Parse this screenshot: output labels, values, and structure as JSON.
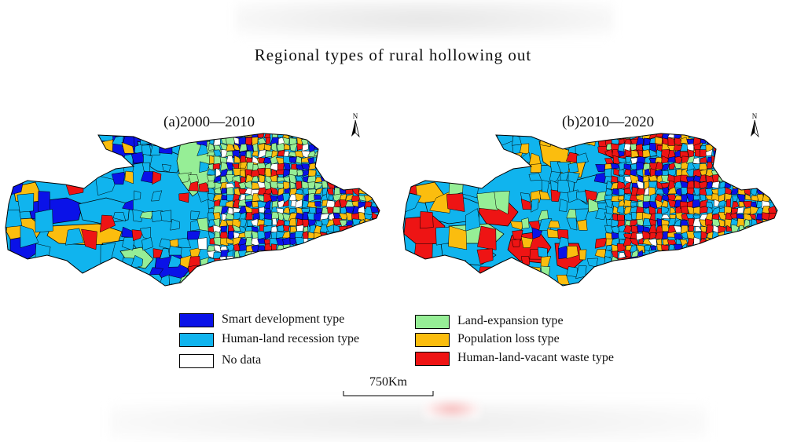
{
  "title": "Regional types of rural hollowing out",
  "panels": [
    {
      "id": "a",
      "title": "(a)2000—2010",
      "north_label": "N"
    },
    {
      "id": "b",
      "title": "(b)2010—2020",
      "north_label": "N"
    }
  ],
  "legend": [
    {
      "label": "Smart development  type",
      "color": "#0a12e8"
    },
    {
      "label": "Land-expansion type",
      "color": "#96ee96"
    },
    {
      "label": "Human-land recession type",
      "color": "#10b4ee"
    },
    {
      "label": "Population loss type",
      "color": "#fbbd0e"
    },
    {
      "label": "No data",
      "color": "#ffffff"
    },
    {
      "label": "Human-land-vacant waste type",
      "color": "#ee1414"
    }
  ],
  "scale": {
    "label": "750Km"
  }
}
